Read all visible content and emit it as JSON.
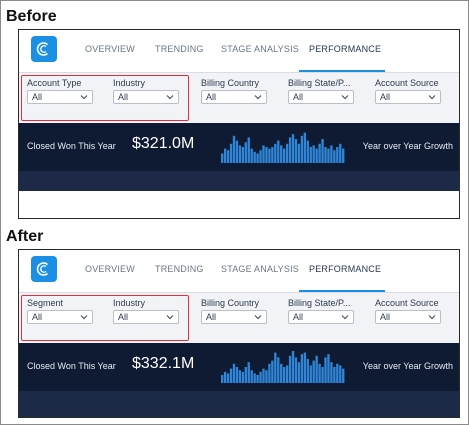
{
  "before": {
    "section_label": "Before",
    "tabs": [
      "OVERVIEW",
      "TRENDING",
      "STAGE ANALYSIS",
      "PERFORMANCE"
    ],
    "active_tab": "PERFORMANCE",
    "filters": [
      {
        "label": "Account Type",
        "value": "All"
      },
      {
        "label": "Industry",
        "value": "All"
      },
      {
        "label": "Billing Country",
        "value": "All"
      },
      {
        "label": "Billing State/P...",
        "value": "All"
      },
      {
        "label": "Account Source",
        "value": "All"
      }
    ],
    "kpi_label": "Closed Won This Year",
    "kpi_value": "$321.0M",
    "yoy_label": "Year over Year Growth",
    "sparkline": [
      0.3,
      0.45,
      0.4,
      0.6,
      0.85,
      0.7,
      0.55,
      0.5,
      0.65,
      0.8,
      0.45,
      0.35,
      0.3,
      0.4,
      0.55,
      0.5,
      0.45,
      0.5,
      0.6,
      0.7,
      0.55,
      0.45,
      0.6,
      0.8,
      0.9,
      0.75,
      0.6,
      0.85,
      0.95,
      0.7,
      0.5,
      0.55,
      0.45,
      0.6,
      0.75,
      0.5,
      0.45,
      0.55,
      0.4,
      0.5,
      0.6,
      0.45
    ]
  },
  "after": {
    "section_label": "After",
    "tabs": [
      "OVERVIEW",
      "TRENDING",
      "STAGE ANALYSIS",
      "PERFORMANCE"
    ],
    "active_tab": "PERFORMANCE",
    "filters": [
      {
        "label": "Segment",
        "value": "All"
      },
      {
        "label": "Industry",
        "value": "All"
      },
      {
        "label": "Billing Country",
        "value": "All"
      },
      {
        "label": "Billing State/P...",
        "value": "All"
      },
      {
        "label": "Account Source",
        "value": "All"
      }
    ],
    "kpi_label": "Closed Won This Year",
    "kpi_value": "$332.1M",
    "yoy_label": "Year over Year Growth",
    "sparkline": [
      0.25,
      0.35,
      0.3,
      0.45,
      0.6,
      0.5,
      0.4,
      0.35,
      0.5,
      0.65,
      0.4,
      0.3,
      0.25,
      0.35,
      0.45,
      0.4,
      0.6,
      0.7,
      0.95,
      0.8,
      0.6,
      0.5,
      0.55,
      0.85,
      1.0,
      0.8,
      0.65,
      0.9,
      0.95,
      0.75,
      0.55,
      0.7,
      0.85,
      0.6,
      0.5,
      0.8,
      0.9,
      0.65,
      0.5,
      0.6,
      0.55,
      0.45
    ]
  },
  "colors": {
    "accent": "#1b8fe4",
    "band_dark": "#0f1b33",
    "highlight": "#e0303f",
    "spark": "#2f86d8"
  }
}
